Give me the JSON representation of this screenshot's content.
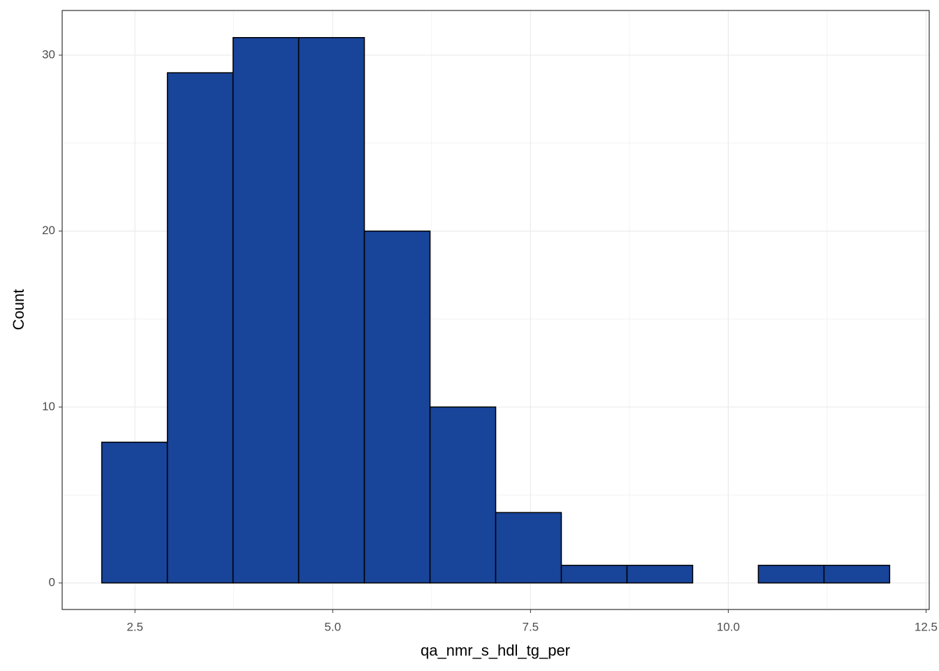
{
  "chart_data": {
    "type": "histogram",
    "x_label": "qa_nmr_s_hdl_tg_per",
    "y_label": "Count",
    "bins": [
      2.08,
      2.91,
      3.74,
      4.57,
      5.4,
      6.23,
      7.06,
      7.89,
      8.72,
      9.55,
      10.38,
      11.21,
      12.04
    ],
    "values": [
      8,
      29,
      31,
      31,
      20,
      10,
      4,
      1,
      1,
      0,
      1,
      1
    ],
    "color": "#18449a",
    "edge_color": "#000000",
    "xlim": [
      1.58,
      12.54
    ],
    "ylim": [
      -1.51,
      32.54
    ],
    "xticks": [
      {
        "value": 2.5,
        "label": "2.5"
      },
      {
        "value": 5,
        "label": "5.0"
      },
      {
        "value": 7.5,
        "label": "7.5"
      },
      {
        "value": 10,
        "label": "10.0"
      },
      {
        "value": 12.5,
        "label": "12.5"
      }
    ],
    "yticks": [
      0,
      10,
      20,
      30
    ],
    "xminor": [
      3.75,
      6.25,
      8.75,
      11.25
    ],
    "yminor": [
      5,
      15,
      25
    ],
    "grid": true
  }
}
